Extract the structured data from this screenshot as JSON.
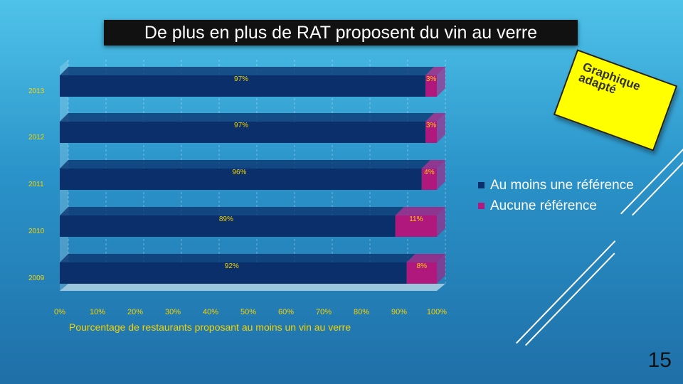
{
  "slide": {
    "title": "De plus en plus de RAT proposent du vin au verre",
    "sticky_note": "Graphique\nadapté",
    "page_number": "15"
  },
  "colors": {
    "series_1": "#0a2f6b",
    "series_2": "#b0187e",
    "label_1": "#f5d300",
    "label_2": "#f5d300"
  },
  "chart_data": {
    "type": "bar",
    "orientation": "horizontal",
    "stacked": true,
    "categories": [
      "2013",
      "2012",
      "2011",
      "2010",
      "2009"
    ],
    "series": [
      {
        "name": "Au moins une référence",
        "values": [
          97,
          97,
          96,
          89,
          92
        ],
        "labels": [
          "97%",
          "97%",
          "96%",
          "89%",
          "92%"
        ]
      },
      {
        "name": "Aucune référence",
        "values": [
          3,
          3,
          4,
          11,
          8
        ],
        "labels": [
          "3%",
          "3%",
          "4%",
          "11%",
          "8%"
        ]
      }
    ],
    "x_ticks": [
      "0%",
      "10%",
      "20%",
      "30%",
      "40%",
      "50%",
      "60%",
      "70%",
      "80%",
      "90%",
      "100%"
    ],
    "xlim": [
      0,
      100
    ],
    "xlabel": "Pourcentage de restaurants proposant au moins un vin au verre",
    "legend_position": "right"
  }
}
